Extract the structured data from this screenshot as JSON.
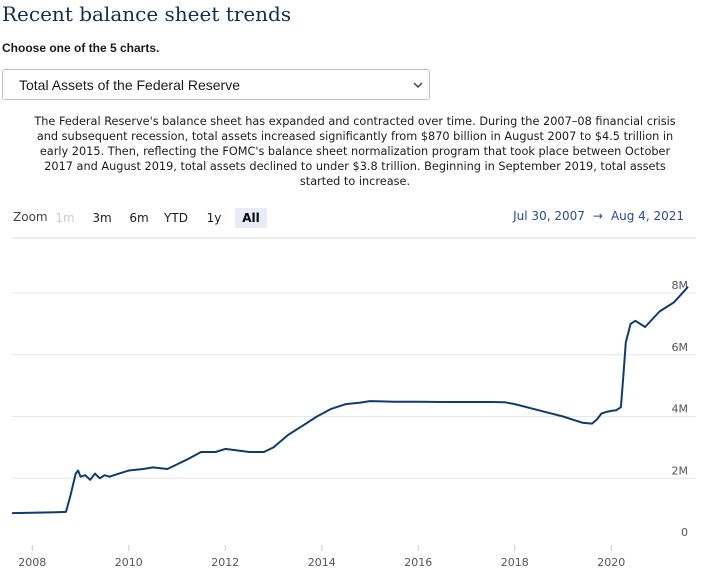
{
  "header": {
    "title": "Recent balance sheet trends",
    "select_label": "Choose one of the 5 charts.",
    "select_value": "Total Assets of the Federal Reserve"
  },
  "description": "The Federal Reserve's balance sheet has expanded and contracted over time. During the 2007–08 financial crisis and subsequent recession, total assets increased significantly from $870 billion in August 2007 to $4.5 trillion in early 2015. Then, reflecting the FOMC's balance sheet normalization program that took place between October 2017 and August 2019, total assets declined to under $3.8 trillion. Beginning in September 2019, total assets started to increase.",
  "zoom": {
    "label": "Zoom",
    "buttons": [
      {
        "label": "1m",
        "state": "disabled"
      },
      {
        "label": "3m",
        "state": "normal"
      },
      {
        "label": "6m",
        "state": "normal"
      },
      {
        "label": "YTD",
        "state": "normal"
      },
      {
        "label": "1y",
        "state": "normal"
      },
      {
        "label": "All",
        "state": "active"
      }
    ]
  },
  "range": {
    "from": "Jul 30, 2007",
    "arrow": "→",
    "to": "Aug 4, 2021"
  },
  "colors": {
    "line": "#0f3d6b",
    "grid": "#e6e6e6",
    "title": "#112e51",
    "accent": "#2a4a8b"
  },
  "icons": {
    "select_chevron": "chevron-down-icon"
  },
  "chart_data": {
    "type": "line",
    "title": "",
    "xlabel": "",
    "ylabel": "",
    "xlim": [
      2007.58,
      2021.59
    ],
    "ylim": [
      0,
      8000000
    ],
    "x_ticks": [
      2008,
      2010,
      2012,
      2014,
      2016,
      2018,
      2020
    ],
    "x_tick_labels": [
      "2008",
      "2010",
      "2012",
      "2014",
      "2016",
      "2018",
      "2020"
    ],
    "y_ticks": [
      0,
      2000000,
      4000000,
      6000000,
      8000000
    ],
    "y_tick_labels": [
      "0",
      "2M",
      "4M",
      "6M",
      "8M"
    ],
    "grid": true,
    "legend": "none",
    "series": [
      {
        "x": [
          2007.58,
          2008.0,
          2008.5,
          2008.7,
          2008.8,
          2008.9,
          2008.95,
          2009.0,
          2009.1,
          2009.2,
          2009.3,
          2009.4,
          2009.5,
          2009.6,
          2009.8,
          2010.0,
          2010.3,
          2010.5,
          2010.8,
          2011.0,
          2011.2,
          2011.5,
          2011.8,
          2012.0,
          2012.5,
          2012.8,
          2013.0,
          2013.3,
          2013.6,
          2013.9,
          2014.2,
          2014.5,
          2014.8,
          2015.0,
          2015.5,
          2016.0,
          2016.5,
          2017.0,
          2017.5,
          2017.8,
          2018.0,
          2018.5,
          2019.0,
          2019.4,
          2019.6,
          2019.7,
          2019.8,
          2019.9,
          2020.0,
          2020.1,
          2020.2,
          2020.25,
          2020.3,
          2020.4,
          2020.5,
          2020.7,
          2021.0,
          2021.3,
          2021.59
        ],
        "values": [
          870000,
          880000,
          900000,
          910000,
          1500000,
          2150000,
          2250000,
          2050000,
          2100000,
          1950000,
          2150000,
          2000000,
          2100000,
          2050000,
          2150000,
          2250000,
          2300000,
          2350000,
          2300000,
          2450000,
          2600000,
          2850000,
          2850000,
          2950000,
          2850000,
          2850000,
          3000000,
          3400000,
          3700000,
          4000000,
          4250000,
          4400000,
          4450000,
          4500000,
          4480000,
          4480000,
          4470000,
          4470000,
          4470000,
          4460000,
          4400000,
          4200000,
          4000000,
          3800000,
          3770000,
          3900000,
          4100000,
          4150000,
          4180000,
          4200000,
          4300000,
          5300000,
          6400000,
          7000000,
          7100000,
          6900000,
          7400000,
          7700000,
          8200000
        ]
      }
    ]
  }
}
